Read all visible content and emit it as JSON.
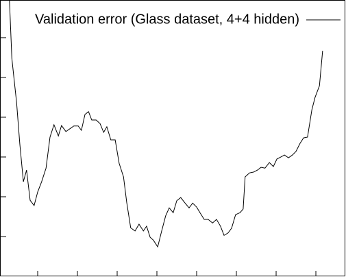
{
  "chart_data": {
    "type": "line",
    "series": [
      {
        "name": "Validation error (Glass dataset, 4+4 hidden)",
        "color": "#000000",
        "x": [
          2.9,
          3.5,
          4.7,
          5.5,
          6.4,
          7.2,
          8.1,
          9.1,
          10,
          11,
          12.1,
          13.1,
          14.1,
          15.2,
          16,
          17.1,
          18.1,
          19.1,
          20.2,
          21,
          21.9,
          22.8,
          23.6,
          24.7,
          25.7,
          26.6,
          27.4,
          28.4,
          29.5,
          30.5,
          31.6,
          32.4,
          33.4,
          34.5,
          35.5,
          36.6,
          37.4,
          38.3,
          39.1,
          40.2,
          41.2,
          42.2,
          43.1,
          44.1,
          45,
          46,
          47.1,
          48.1,
          49,
          50,
          50.9,
          51.9,
          52.9,
          54,
          55,
          56,
          56.9,
          57.9,
          58.8,
          59.8,
          60.9,
          61.7,
          62.2,
          63.3,
          64.3,
          65.3,
          66.2,
          67.2,
          68.3,
          69.3,
          70.2,
          71.2,
          72.1,
          73.1,
          74.1,
          75,
          76,
          76.9,
          77.9,
          79,
          79.8,
          80.9,
          81.7
        ],
        "values": [
          6.93,
          5.48,
          4.36,
          3.33,
          2.38,
          2.67,
          1.91,
          1.78,
          2.12,
          2.38,
          2.72,
          3.5,
          3.81,
          3.53,
          3.79,
          3.64,
          3.71,
          3.78,
          3.78,
          3.67,
          4.07,
          4.14,
          3.93,
          3.93,
          3.84,
          3.62,
          3.76,
          3.43,
          3.43,
          2.84,
          2.5,
          1.86,
          1.22,
          1.14,
          1.31,
          1.14,
          1.26,
          0.98,
          0.91,
          0.74,
          1.14,
          1.52,
          1.72,
          1.6,
          1.9,
          1.98,
          1.84,
          1.72,
          1.84,
          1.74,
          1.59,
          1.43,
          1.43,
          1.34,
          1.43,
          1.26,
          1.03,
          1.09,
          1.21,
          1.55,
          1.6,
          1.69,
          2.5,
          2.6,
          2.62,
          2.67,
          2.74,
          2.72,
          2.86,
          2.76,
          2.95,
          3.0,
          3.05,
          2.98,
          3.05,
          3.14,
          3.34,
          3.48,
          3.5,
          4.19,
          4.5,
          4.79,
          5.67
        ]
      }
    ],
    "xlim": [
      0.69,
      87.41
    ],
    "xticks": [
      10,
      20,
      30,
      40,
      50,
      60,
      70,
      80
    ],
    "ylim": [
      0,
      6.93
    ],
    "yticks": [
      1,
      2,
      3,
      4,
      5,
      6
    ],
    "legend": "top-right"
  }
}
